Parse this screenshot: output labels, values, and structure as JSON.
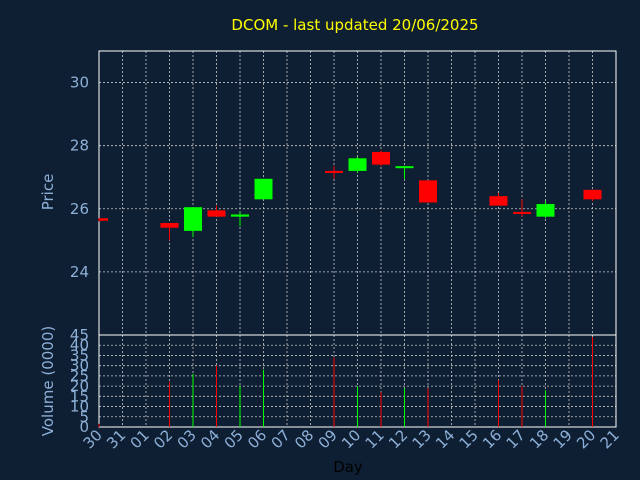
{
  "chart_data": [
    {
      "type": "candlestick",
      "title": "DCOM - last updated 20/06/2025",
      "ylabel": "Price",
      "ylim": [
        22.0,
        31.0
      ],
      "yticks": [
        "24",
        "26",
        "28",
        "30"
      ],
      "grid": true,
      "days": [
        "30",
        "31",
        "01",
        "02",
        "03",
        "04",
        "05",
        "06",
        "07",
        "08",
        "09",
        "10",
        "11",
        "12",
        "13",
        "14",
        "15",
        "16",
        "17",
        "18",
        "19",
        "20",
        "21"
      ],
      "candles": [
        {
          "day": "30",
          "open": 25.7,
          "high": 25.7,
          "low": 25.6,
          "close": 25.62
        },
        {
          "day": "02",
          "open": 25.55,
          "high": 25.55,
          "low": 25.0,
          "close": 25.4
        },
        {
          "day": "03",
          "open": 25.3,
          "high": 26.05,
          "low": 25.1,
          "close": 26.05
        },
        {
          "day": "04",
          "open": 25.95,
          "high": 26.1,
          "low": 25.75,
          "close": 25.75
        },
        {
          "day": "05",
          "open": 25.75,
          "high": 25.9,
          "low": 25.45,
          "close": 25.82
        },
        {
          "day": "06",
          "open": 26.3,
          "high": 26.95,
          "low": 26.3,
          "close": 26.95
        },
        {
          "day": "09",
          "open": 27.2,
          "high": 27.35,
          "low": 26.95,
          "close": 27.15
        },
        {
          "day": "10",
          "open": 27.2,
          "high": 27.65,
          "low": 27.15,
          "close": 27.6
        },
        {
          "day": "11",
          "open": 27.8,
          "high": 27.85,
          "low": 27.35,
          "close": 27.4
        },
        {
          "day": "12",
          "open": 27.3,
          "high": 27.35,
          "low": 26.95,
          "close": 27.35
        },
        {
          "day": "13",
          "open": 26.9,
          "high": 26.9,
          "low": 26.2,
          "close": 26.2
        },
        {
          "day": "16",
          "open": 26.4,
          "high": 26.5,
          "low": 26.1,
          "close": 26.1
        },
        {
          "day": "17",
          "open": 25.9,
          "high": 26.3,
          "low": 25.75,
          "close": 25.85
        },
        {
          "day": "18",
          "open": 25.75,
          "high": 26.25,
          "low": 25.7,
          "close": 26.15
        },
        {
          "day": "20",
          "open": 26.6,
          "high": 26.6,
          "low": 26.25,
          "close": 26.3
        }
      ]
    },
    {
      "type": "bar",
      "xlabel": "Day",
      "ylabel": "Volume (0000)",
      "ylim": [
        0,
        45
      ],
      "yticks": [
        "0",
        "5",
        "10",
        "15",
        "20",
        "25",
        "30",
        "35",
        "40",
        "45"
      ],
      "grid": true,
      "bars": [
        {
          "day": "30",
          "value": 1.5,
          "direction": "down"
        },
        {
          "day": "02",
          "value": 22,
          "direction": "down"
        },
        {
          "day": "03",
          "value": 26,
          "direction": "up"
        },
        {
          "day": "04",
          "value": 30,
          "direction": "down"
        },
        {
          "day": "05",
          "value": 20,
          "direction": "up"
        },
        {
          "day": "06",
          "value": 28,
          "direction": "up"
        },
        {
          "day": "09",
          "value": 34,
          "direction": "down"
        },
        {
          "day": "10",
          "value": 20,
          "direction": "up"
        },
        {
          "day": "11",
          "value": 17,
          "direction": "down"
        },
        {
          "day": "12",
          "value": 19,
          "direction": "up"
        },
        {
          "day": "13",
          "value": 19,
          "direction": "down"
        },
        {
          "day": "16",
          "value": 23,
          "direction": "down"
        },
        {
          "day": "17",
          "value": 20,
          "direction": "down"
        },
        {
          "day": "18",
          "value": 18,
          "direction": "up"
        },
        {
          "day": "20",
          "value": 44,
          "direction": "down"
        }
      ]
    }
  ],
  "colors": {
    "up": "#00ff00",
    "down": "#ff0000",
    "grid": "#c8c8c8",
    "axis_text": "#8db0d8",
    "title": "#ffff00",
    "background": "#0f1f33"
  }
}
